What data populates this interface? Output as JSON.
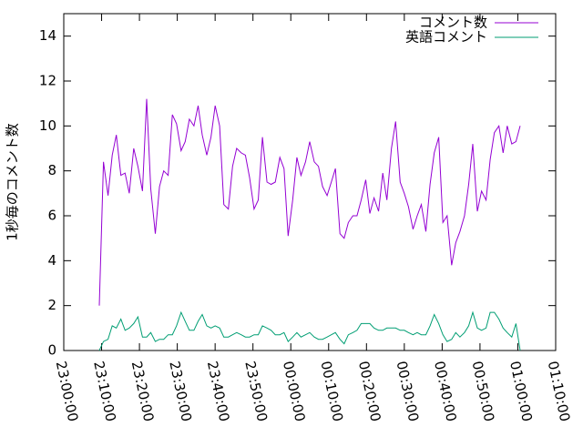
{
  "chart_data": {
    "type": "line",
    "ylabel": "1秒毎のコメント数",
    "legend": "top-right",
    "xlim": [
      0,
      130
    ],
    "xticks": [
      {
        "value": 0,
        "label": "23:00:00"
      },
      {
        "value": 10,
        "label": "23:10:00"
      },
      {
        "value": 20,
        "label": "23:20:00"
      },
      {
        "value": 30,
        "label": "23:30:00"
      },
      {
        "value": 40,
        "label": "23:40:00"
      },
      {
        "value": 50,
        "label": "23:50:00"
      },
      {
        "value": 60,
        "label": "00:00:00"
      },
      {
        "value": 70,
        "label": "00:10:00"
      },
      {
        "value": 80,
        "label": "00:20:00"
      },
      {
        "value": 90,
        "label": "00:30:00"
      },
      {
        "value": 100,
        "label": "00:40:00"
      },
      {
        "value": 110,
        "label": "00:50:00"
      },
      {
        "value": 120,
        "label": "01:00:00"
      },
      {
        "value": 130,
        "label": "01:10:00"
      }
    ],
    "ylim": [
      0,
      15
    ],
    "yticks": [
      0,
      2,
      4,
      6,
      8,
      10,
      12,
      14
    ],
    "x": [
      9.4,
      10.5,
      11.7,
      12.8,
      13.9,
      15.1,
      16.2,
      17.3,
      18.5,
      19.6,
      20.8,
      21.9,
      23.0,
      24.2,
      25.3,
      26.4,
      27.6,
      28.7,
      29.8,
      31.0,
      32.1,
      33.2,
      34.4,
      35.5,
      36.6,
      37.8,
      38.9,
      40.0,
      41.2,
      42.3,
      43.5,
      44.6,
      45.7,
      46.9,
      48.0,
      49.1,
      50.3,
      51.4,
      52.5,
      53.7,
      54.8,
      55.9,
      57.1,
      58.2,
      59.3,
      60.5,
      61.6,
      62.7,
      63.9,
      65.0,
      66.2,
      67.3,
      68.4,
      69.6,
      70.7,
      71.8,
      73.0,
      74.1,
      75.2,
      76.4,
      77.5,
      78.6,
      79.8,
      80.9,
      82.0,
      83.2,
      84.3,
      85.4,
      86.6,
      87.7,
      88.9,
      90.0,
      91.1,
      92.3,
      93.4,
      94.5,
      95.7,
      96.8,
      97.9,
      99.1,
      100.2,
      101.3,
      102.5,
      103.6,
      104.7,
      105.9,
      107.0,
      108.1,
      109.3,
      110.4,
      111.6,
      112.7,
      113.8,
      115.0,
      116.1,
      117.2,
      118.4,
      119.5,
      120.6
    ],
    "series": [
      {
        "name": "コメント数",
        "color": "#9400d3",
        "values": [
          2,
          8.4,
          6.9,
          8.7,
          9.6,
          7.8,
          7.9,
          7.0,
          9.0,
          8.2,
          7.1,
          11.2,
          7.2,
          5.2,
          7.3,
          8.0,
          7.8,
          10.5,
          10.1,
          8.9,
          9.3,
          10.3,
          10.0,
          10.9,
          9.6,
          8.7,
          9.5,
          10.9,
          10.0,
          6.5,
          6.3,
          8.2,
          9.0,
          8.8,
          8.7,
          7.7,
          6.3,
          6.7,
          9.5,
          7.5,
          7.4,
          7.5,
          8.6,
          8.1,
          5.1,
          6.7,
          8.6,
          7.8,
          8.4,
          9.3,
          8.4,
          8.2,
          7.3,
          6.9,
          7.5,
          8.1,
          5.2,
          5.0,
          5.7,
          6.0,
          6.0,
          6.7,
          7.6,
          6.1,
          6.8,
          6.2,
          7.9,
          6.7,
          9.0,
          10.2,
          7.5,
          7.0,
          6.4,
          5.4,
          6.0,
          6.5,
          5.3,
          7.4,
          8.8,
          9.5,
          5.7,
          6.0,
          3.8,
          4.8,
          5.3,
          6.0,
          7.4,
          9.2,
          6.2,
          7.1,
          6.7,
          8.5,
          9.7,
          10.0,
          8.8,
          10.0,
          9.2,
          9.3,
          10.0
        ]
      },
      {
        "name": "英語コメント",
        "color": "#009e73",
        "values": [
          0,
          0.4,
          0.5,
          1.1,
          1.0,
          1.4,
          0.9,
          1.0,
          1.2,
          1.5,
          0.6,
          0.6,
          0.8,
          0.4,
          0.5,
          0.5,
          0.7,
          0.7,
          1.1,
          1.7,
          1.3,
          0.9,
          0.9,
          1.3,
          1.6,
          1.1,
          1.0,
          1.1,
          1.0,
          0.6,
          0.6,
          0.7,
          0.8,
          0.7,
          0.6,
          0.6,
          0.7,
          0.7,
          1.1,
          1.0,
          0.9,
          0.7,
          0.7,
          0.8,
          0.4,
          0.6,
          0.8,
          0.6,
          0.7,
          0.8,
          0.6,
          0.5,
          0.5,
          0.6,
          0.7,
          0.8,
          0.5,
          0.3,
          0.7,
          0.8,
          0.9,
          1.2,
          1.2,
          1.2,
          1.0,
          0.9,
          0.9,
          1.0,
          1.0,
          1.0,
          0.9,
          0.9,
          0.8,
          0.7,
          0.8,
          0.7,
          0.7,
          1.1,
          1.6,
          1.2,
          0.7,
          0.4,
          0.5,
          0.8,
          0.6,
          0.8,
          1.1,
          1.7,
          1.0,
          0.9,
          1.0,
          1.7,
          1.7,
          1.4,
          1.0,
          0.8,
          0.6,
          1.2,
          0
        ]
      }
    ]
  }
}
